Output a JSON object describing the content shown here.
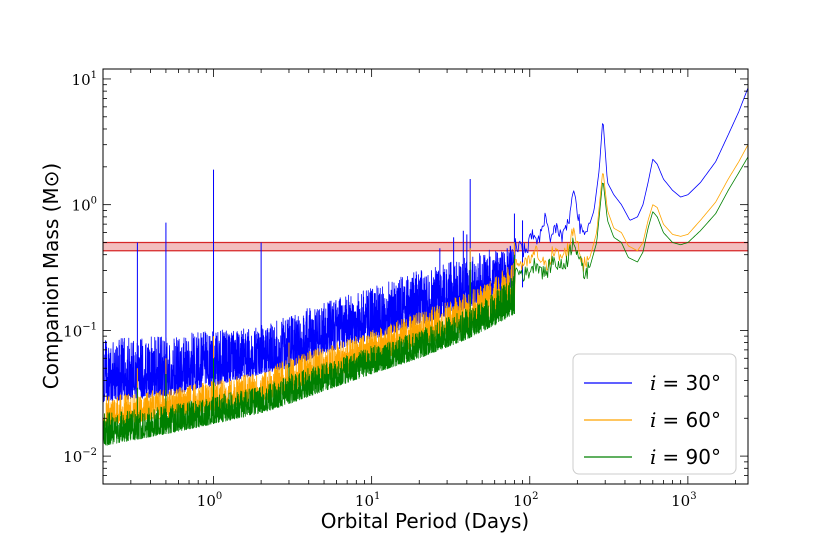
{
  "chart_data": {
    "type": "line",
    "title": "",
    "xlabel": "Orbital Period (Days)",
    "ylabel": "Companion Mass (M⊙)",
    "xscale": "log",
    "yscale": "log",
    "xlim": [
      0.2,
      2400
    ],
    "ylim": [
      0.006,
      12
    ],
    "x_ticks": [
      {
        "base": "10",
        "exp": "0",
        "value": 1
      },
      {
        "base": "10",
        "exp": "1",
        "value": 10
      },
      {
        "base": "10",
        "exp": "2",
        "value": 100
      },
      {
        "base": "10",
        "exp": "3",
        "value": 1000
      }
    ],
    "y_ticks": [
      {
        "base": "10",
        "exp": "−2",
        "value": 0.01
      },
      {
        "base": "10",
        "exp": "−1",
        "value": 0.1
      },
      {
        "base": "10",
        "exp": "0",
        "value": 1
      },
      {
        "base": "10",
        "exp": "1",
        "value": 10
      }
    ],
    "grid": false,
    "legend_position": "bottom-right",
    "band": {
      "y_low": 0.43,
      "y_high": 0.5,
      "color": "#d62728"
    },
    "series": [
      {
        "name": "i = 30°",
        "label_lhs": "i",
        "label_rhs": "= 30°",
        "color": "#0000ff",
        "floor": [
          [
            0.2,
            0.027
          ],
          [
            0.5,
            0.03
          ],
          [
            1,
            0.036
          ],
          [
            2,
            0.045
          ],
          [
            3,
            0.05
          ],
          [
            5,
            0.066
          ],
          [
            10,
            0.085
          ],
          [
            20,
            0.11
          ],
          [
            40,
            0.15
          ],
          [
            60,
            0.19
          ],
          [
            80,
            0.22
          ]
        ],
        "noise_top": [
          [
            0.2,
            0.085
          ],
          [
            0.5,
            0.09
          ],
          [
            1,
            0.1
          ],
          [
            2,
            0.11
          ],
          [
            3,
            0.13
          ],
          [
            5,
            0.17
          ],
          [
            10,
            0.22
          ],
          [
            20,
            0.3
          ],
          [
            40,
            0.38
          ],
          [
            60,
            0.45
          ],
          [
            80,
            0.5
          ]
        ],
        "spikes": [
          [
            0.33,
            0.5
          ],
          [
            0.5,
            0.72
          ],
          [
            1,
            1.9
          ],
          [
            2,
            0.5
          ],
          [
            27,
            0.45
          ],
          [
            33,
            0.55
          ],
          [
            38,
            0.62
          ],
          [
            40,
            0.58
          ],
          [
            42,
            1.6
          ],
          [
            62,
            0.38
          ],
          [
            72,
            0.45
          ],
          [
            80,
            0.85
          ],
          [
            90,
            0.75
          ]
        ],
        "smooth": [
          [
            80,
            0.5
          ],
          [
            95,
            0.42
          ],
          [
            105,
            0.6
          ],
          [
            115,
            0.52
          ],
          [
            125,
            0.75
          ],
          [
            135,
            0.5
          ],
          [
            145,
            0.68
          ],
          [
            160,
            0.56
          ],
          [
            175,
            0.7
          ],
          [
            190,
            1.3
          ],
          [
            200,
            0.9
          ],
          [
            215,
            0.55
          ],
          [
            230,
            0.6
          ],
          [
            255,
            0.9
          ],
          [
            275,
            1.9
          ],
          [
            290,
            4.9
          ],
          [
            310,
            1.5
          ],
          [
            340,
            1.2
          ],
          [
            380,
            1.0
          ],
          [
            430,
            0.75
          ],
          [
            480,
            0.8
          ],
          [
            520,
            1.0
          ],
          [
            560,
            1.5
          ],
          [
            600,
            2.3
          ],
          [
            640,
            2.1
          ],
          [
            700,
            1.6
          ],
          [
            800,
            1.3
          ],
          [
            900,
            1.15
          ],
          [
            1000,
            1.2
          ],
          [
            1200,
            1.5
          ],
          [
            1500,
            2.2
          ],
          [
            1800,
            3.6
          ],
          [
            2100,
            5.5
          ],
          [
            2400,
            8.5
          ]
        ]
      },
      {
        "name": "i = 60°",
        "label_lhs": "i",
        "label_rhs": "= 60°",
        "color": "#ffa500",
        "floor": [
          [
            0.2,
            0.017
          ],
          [
            0.5,
            0.02
          ],
          [
            1,
            0.023
          ],
          [
            2,
            0.027
          ],
          [
            3,
            0.032
          ],
          [
            5,
            0.04
          ],
          [
            10,
            0.055
          ],
          [
            20,
            0.075
          ],
          [
            40,
            0.1
          ],
          [
            60,
            0.13
          ],
          [
            80,
            0.155
          ]
        ],
        "noise_top": [
          [
            0.2,
            0.03
          ],
          [
            0.5,
            0.034
          ],
          [
            1,
            0.04
          ],
          [
            2,
            0.047
          ],
          [
            3,
            0.06
          ],
          [
            5,
            0.075
          ],
          [
            10,
            0.1
          ],
          [
            20,
            0.14
          ],
          [
            40,
            0.2
          ],
          [
            60,
            0.27
          ],
          [
            80,
            0.35
          ]
        ],
        "spikes": [
          [
            0.33,
            0.05
          ],
          [
            0.5,
            0.06
          ],
          [
            1,
            0.09
          ],
          [
            3,
            0.08
          ],
          [
            42,
            0.45
          ],
          [
            80,
            0.5
          ]
        ],
        "smooth": [
          [
            80,
            0.35
          ],
          [
            95,
            0.33
          ],
          [
            110,
            0.42
          ],
          [
            125,
            0.32
          ],
          [
            140,
            0.42
          ],
          [
            160,
            0.38
          ],
          [
            175,
            0.45
          ],
          [
            190,
            0.65
          ],
          [
            205,
            0.45
          ],
          [
            220,
            0.33
          ],
          [
            240,
            0.38
          ],
          [
            265,
            0.6
          ],
          [
            290,
            1.9
          ],
          [
            310,
            0.9
          ],
          [
            340,
            0.65
          ],
          [
            380,
            0.6
          ],
          [
            420,
            0.47
          ],
          [
            480,
            0.43
          ],
          [
            520,
            0.5
          ],
          [
            560,
            0.75
          ],
          [
            600,
            1.0
          ],
          [
            640,
            0.95
          ],
          [
            700,
            0.7
          ],
          [
            800,
            0.58
          ],
          [
            900,
            0.56
          ],
          [
            1000,
            0.58
          ],
          [
            1200,
            0.75
          ],
          [
            1500,
            1.05
          ],
          [
            1800,
            1.6
          ],
          [
            2100,
            2.2
          ],
          [
            2400,
            3.0
          ]
        ]
      },
      {
        "name": "i = 90°",
        "label_lhs": "i",
        "label_rhs": "= 90°",
        "color": "#008000",
        "floor": [
          [
            0.2,
            0.012
          ],
          [
            0.5,
            0.015
          ],
          [
            1,
            0.018
          ],
          [
            2,
            0.022
          ],
          [
            3,
            0.026
          ],
          [
            5,
            0.033
          ],
          [
            10,
            0.045
          ],
          [
            20,
            0.06
          ],
          [
            40,
            0.085
          ],
          [
            60,
            0.11
          ],
          [
            80,
            0.135
          ]
        ],
        "noise_top": [
          [
            0.2,
            0.022
          ],
          [
            0.5,
            0.025
          ],
          [
            1,
            0.03
          ],
          [
            2,
            0.036
          ],
          [
            3,
            0.045
          ],
          [
            5,
            0.055
          ],
          [
            10,
            0.075
          ],
          [
            20,
            0.1
          ],
          [
            40,
            0.15
          ],
          [
            60,
            0.2
          ],
          [
            80,
            0.28
          ]
        ],
        "spikes": [
          [
            0.33,
            0.035
          ],
          [
            0.5,
            0.045
          ],
          [
            1,
            0.06
          ],
          [
            3,
            0.055
          ],
          [
            42,
            0.35
          ],
          [
            80,
            0.4
          ]
        ],
        "smooth": [
          [
            80,
            0.3
          ],
          [
            95,
            0.28
          ],
          [
            110,
            0.35
          ],
          [
            125,
            0.28
          ],
          [
            140,
            0.36
          ],
          [
            160,
            0.32
          ],
          [
            175,
            0.38
          ],
          [
            190,
            0.55
          ],
          [
            205,
            0.38
          ],
          [
            220,
            0.28
          ],
          [
            240,
            0.32
          ],
          [
            265,
            0.5
          ],
          [
            290,
            1.6
          ],
          [
            310,
            0.75
          ],
          [
            340,
            0.55
          ],
          [
            380,
            0.5
          ],
          [
            420,
            0.38
          ],
          [
            480,
            0.35
          ],
          [
            520,
            0.42
          ],
          [
            560,
            0.65
          ],
          [
            600,
            0.88
          ],
          [
            640,
            0.8
          ],
          [
            700,
            0.6
          ],
          [
            800,
            0.5
          ],
          [
            900,
            0.48
          ],
          [
            1000,
            0.5
          ],
          [
            1200,
            0.62
          ],
          [
            1500,
            0.85
          ],
          [
            1800,
            1.3
          ],
          [
            2100,
            1.8
          ],
          [
            2400,
            2.4
          ]
        ]
      }
    ]
  }
}
